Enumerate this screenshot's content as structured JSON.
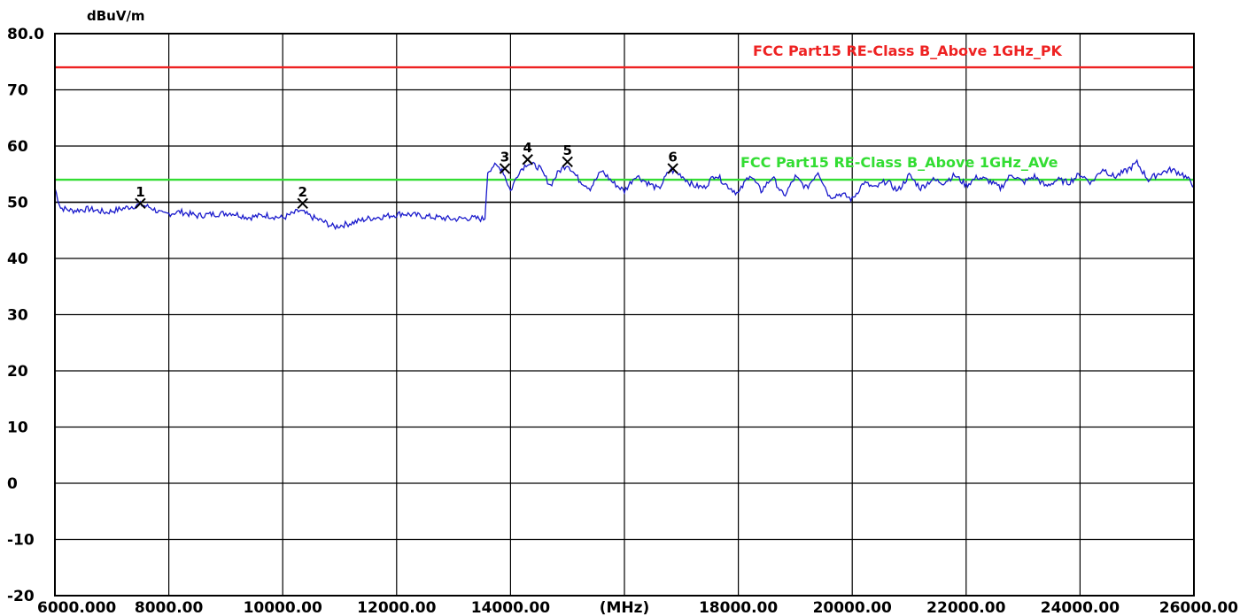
{
  "chart_data": {
    "type": "line",
    "ylabel": "dBuV/m",
    "xunit_label": "(MHz)",
    "xlim": [
      6000,
      26000
    ],
    "ylim": [
      -20,
      80
    ],
    "grid": true,
    "y_ticks": [
      "80.0",
      "70",
      "60",
      "50",
      "40",
      "30",
      "20",
      "10",
      "0",
      "-10",
      "-20"
    ],
    "y_tick_values": [
      80,
      70,
      60,
      50,
      40,
      30,
      20,
      10,
      0,
      -10,
      -20
    ],
    "x_ticks": [
      "6000.000",
      "8000.00",
      "10000.00",
      "12000.00",
      "14000.00",
      "(MHz)",
      "18000.00",
      "20000.00",
      "22000.00",
      "24000.00",
      "26000.00"
    ],
    "x_tick_values": [
      6000,
      8000,
      10000,
      12000,
      14000,
      16000,
      18000,
      20000,
      22000,
      24000,
      26000
    ],
    "limit_lines": [
      {
        "name": "FCC Part15 RE-Class B_Above 1GHz_PK",
        "value": 74.0,
        "color": "#ee2222"
      },
      {
        "name": "FCC Part15 RE-Class B_Above 1GHz_AVe",
        "value": 54.0,
        "color": "#33dd33"
      }
    ],
    "reference_line": {
      "value": 50.0,
      "color": "#000000"
    },
    "series": [
      {
        "color": "#1a1acc",
        "x": [
          6000,
          6100,
          6300,
          6600,
          6900,
          7200,
          7500,
          7700,
          7900,
          8200,
          8500,
          8800,
          9100,
          9400,
          9700,
          10000,
          10300,
          10500,
          10700,
          10900,
          11200,
          11500,
          11800,
          12100,
          12400,
          12700,
          13000,
          13300,
          13550,
          13600,
          13700,
          13850,
          14000,
          14150,
          14300,
          14500,
          14700,
          14850,
          15000,
          15200,
          15400,
          15600,
          15800,
          16000,
          16200,
          16400,
          16600,
          16800,
          17000,
          17200,
          17400,
          17600,
          17800,
          18000,
          18200,
          18400,
          18600,
          18800,
          19000,
          19200,
          19400,
          19600,
          19800,
          20000,
          20200,
          20400,
          20600,
          20800,
          21000,
          21200,
          21400,
          21600,
          21800,
          22000,
          22200,
          22400,
          22600,
          22800,
          23000,
          23200,
          23400,
          23600,
          23800,
          24000,
          24200,
          24400,
          24600,
          24800,
          25000,
          25200,
          25400,
          25600,
          25800,
          26000
        ],
        "values": [
          52.5,
          49.0,
          48.5,
          48.8,
          48.2,
          48.9,
          49.6,
          49.0,
          47.8,
          48.3,
          47.6,
          47.9,
          48.1,
          47.3,
          47.7,
          47.2,
          48.5,
          47.4,
          46.6,
          45.6,
          46.3,
          47.1,
          47.5,
          48.0,
          47.6,
          47.3,
          47.0,
          47.2,
          47.0,
          55.5,
          56.5,
          56.0,
          52.0,
          55.5,
          57.0,
          56.2,
          53.0,
          55.5,
          56.8,
          54.0,
          52.5,
          55.6,
          53.5,
          52.0,
          54.8,
          53.5,
          52.3,
          55.8,
          54.8,
          53.0,
          52.6,
          55.0,
          53.0,
          51.5,
          55.0,
          52.0,
          54.5,
          51.0,
          54.5,
          52.5,
          55.5,
          51.0,
          51.5,
          50.5,
          53.5,
          52.5,
          53.8,
          52.0,
          54.8,
          52.5,
          54.0,
          53.5,
          54.8,
          53.0,
          54.5,
          53.8,
          52.5,
          55.0,
          53.5,
          54.6,
          52.8,
          54.0,
          53.5,
          55.0,
          53.5,
          56.0,
          54.5,
          55.5,
          57.0,
          54.0,
          55.2,
          55.8,
          55.0,
          53.0
        ]
      }
    ],
    "markers": [
      {
        "label": "1",
        "x": 7500,
        "y": 49.8
      },
      {
        "label": "2",
        "x": 10350,
        "y": 49.8
      },
      {
        "label": "3",
        "x": 13900,
        "y": 56.0
      },
      {
        "label": "4",
        "x": 14300,
        "y": 57.6
      },
      {
        "label": "5",
        "x": 15000,
        "y": 57.2
      },
      {
        "label": "6",
        "x": 16850,
        "y": 56.0
      }
    ]
  }
}
